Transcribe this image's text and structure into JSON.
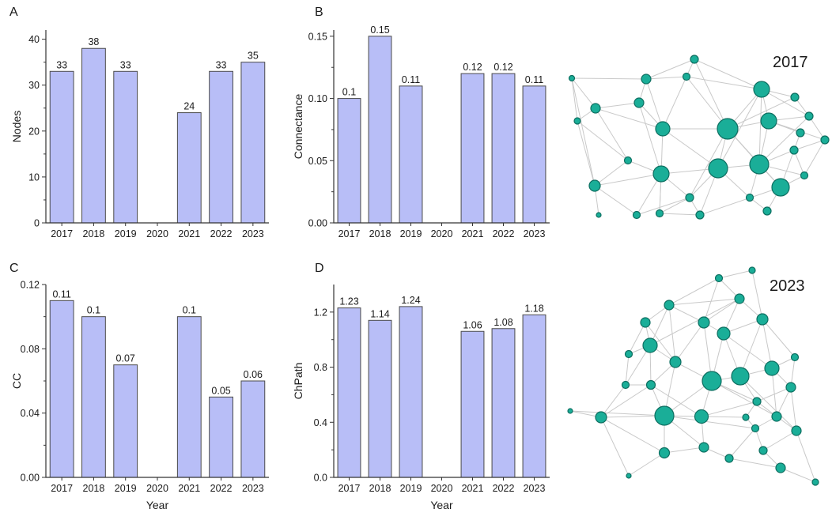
{
  "chart_data": [
    {
      "type": "bar",
      "panel": "A",
      "title": "",
      "xlabel": "",
      "ylabel": "Nodes",
      "categories": [
        "2017",
        "2018",
        "2019",
        "2020",
        "2021",
        "2022",
        "2023"
      ],
      "values": [
        33,
        38,
        33,
        null,
        24,
        33,
        35
      ],
      "labels": [
        "33",
        "38",
        "33",
        "",
        "24",
        "33",
        "35"
      ],
      "ylim": [
        0,
        42
      ],
      "yticks": [
        0,
        10,
        20,
        30,
        40
      ],
      "ytick_labels": [
        "0",
        "10",
        "20",
        "30",
        "40"
      ]
    },
    {
      "type": "bar",
      "panel": "B",
      "title": "",
      "xlabel": "",
      "ylabel": "Connectance",
      "categories": [
        "2017",
        "2018",
        "2019",
        "2020",
        "2021",
        "2022",
        "2023"
      ],
      "values": [
        0.1,
        0.15,
        0.11,
        null,
        0.12,
        0.12,
        0.11
      ],
      "labels": [
        "0.1",
        "0.15",
        "0.11",
        "",
        "0.12",
        "0.12",
        "0.11"
      ],
      "ylim": [
        0,
        0.155
      ],
      "yticks": [
        0,
        0.05,
        0.1,
        0.15
      ],
      "ytick_labels": [
        "0.00",
        "0.05",
        "0.10",
        "0.15"
      ]
    },
    {
      "type": "bar",
      "panel": "C",
      "title": "",
      "xlabel": "Year",
      "ylabel": "CC",
      "categories": [
        "2017",
        "2018",
        "2019",
        "2020",
        "2021",
        "2022",
        "2023"
      ],
      "values": [
        0.11,
        0.1,
        0.07,
        null,
        0.1,
        0.05,
        0.06
      ],
      "labels": [
        "0.11",
        "0.1",
        "0.07",
        "",
        "0.1",
        "0.05",
        "0.06"
      ],
      "ylim": [
        0,
        0.12
      ],
      "yticks": [
        0,
        0.04,
        0.08,
        0.12
      ],
      "ytick_labels": [
        "0.00",
        "0.04",
        "0.08",
        "0.12"
      ]
    },
    {
      "type": "bar",
      "panel": "D",
      "title": "",
      "xlabel": "Year",
      "ylabel": "ChPath",
      "categories": [
        "2017",
        "2018",
        "2019",
        "2020",
        "2021",
        "2022",
        "2023"
      ],
      "values": [
        1.23,
        1.14,
        1.24,
        null,
        1.06,
        1.08,
        1.18
      ],
      "labels": [
        "1.23",
        "1.14",
        "1.24",
        "",
        "1.06",
        "1.08",
        "1.18"
      ],
      "ylim": [
        0,
        1.4
      ],
      "yticks": [
        0,
        0.4,
        0.8,
        1.2
      ],
      "ytick_labels": [
        "0.0",
        "0.4",
        "0.8",
        "1.2"
      ]
    }
  ],
  "networks": [
    {
      "title": "2017",
      "node_color": "#1aae98",
      "edge_color": "#c9c9c9"
    },
    {
      "title": "2023",
      "node_color": "#1aae98",
      "edge_color": "#c9c9c9"
    }
  ],
  "colors": {
    "bar_fill": "#b8bef7",
    "bar_stroke": "#4a4a4a"
  }
}
